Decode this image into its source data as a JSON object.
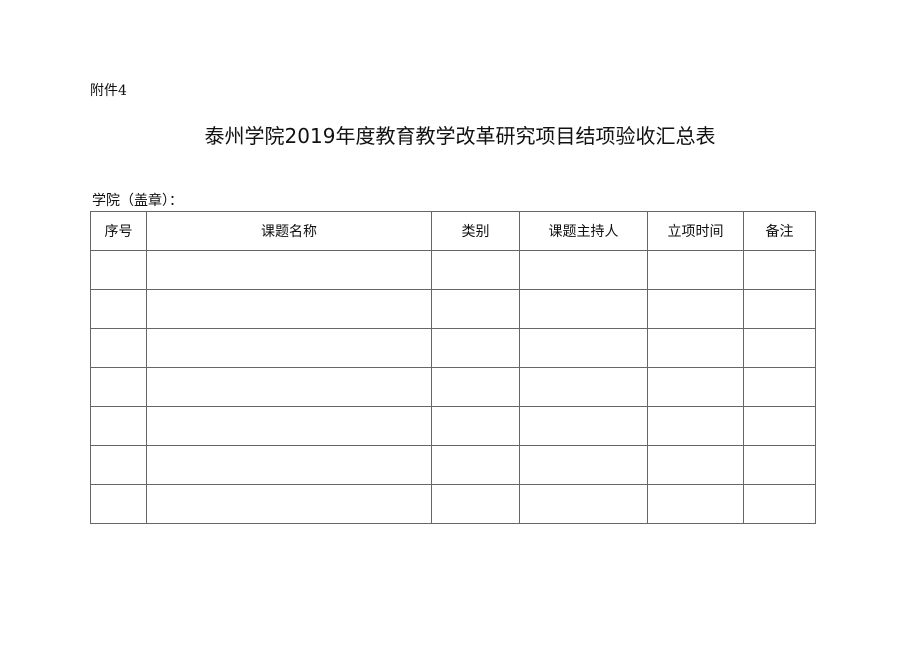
{
  "attachment_label": "附件4",
  "title": "泰州学院2019年度教育教学改革研究项目结项验收汇总表",
  "college_label": "学院（盖章）：",
  "table": {
    "headers": [
      "序号",
      "课题名称",
      "类别",
      "课题主持人",
      "立项时间",
      "备注"
    ],
    "rows": [
      [
        "",
        "",
        "",
        "",
        "",
        ""
      ],
      [
        "",
        "",
        "",
        "",
        "",
        ""
      ],
      [
        "",
        "",
        "",
        "",
        "",
        ""
      ],
      [
        "",
        "",
        "",
        "",
        "",
        ""
      ],
      [
        "",
        "",
        "",
        "",
        "",
        ""
      ],
      [
        "",
        "",
        "",
        "",
        "",
        ""
      ],
      [
        "",
        "",
        "",
        "",
        "",
        ""
      ]
    ]
  }
}
